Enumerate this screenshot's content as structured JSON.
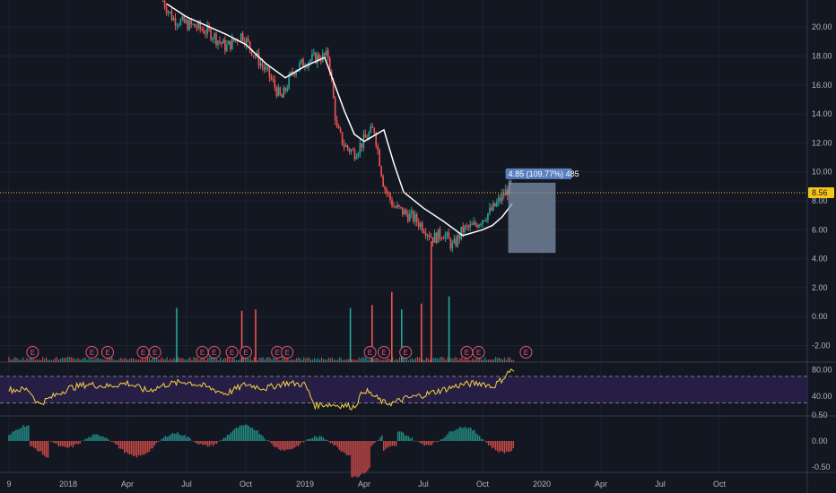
{
  "chart_data": {
    "type": "candlestick",
    "colors": {
      "background": "#131722",
      "grid": "#1e2230",
      "up": "#26a69a",
      "down": "#ef5350",
      "ma_line": "#ffffff",
      "current_price_line": "#f5c518",
      "rsi_line": "#f5d442",
      "rsi_band": "#2a1f4a",
      "measure_box": "#8597b0",
      "label_bg": "#5a7fc0"
    },
    "price_axis": {
      "ticks": [
        "20.00",
        "18.00",
        "16.00",
        "14.00",
        "12.00",
        "10.00",
        "8.00",
        "6.00",
        "4.00",
        "2.00",
        "0.00",
        "-2.00"
      ],
      "tick_values": [
        20,
        18,
        16,
        14,
        12,
        10,
        8,
        6,
        4,
        2,
        0,
        -2
      ],
      "ylim": [
        -3,
        22
      ]
    },
    "rsi_axis": {
      "ticks": [
        "80.00",
        "40.00"
      ],
      "tick_values": [
        80,
        40
      ],
      "ylim": [
        15,
        100
      ],
      "band": [
        30,
        70
      ]
    },
    "macd_axis": {
      "ticks": [
        "0.50",
        "0.00",
        "-0.50"
      ],
      "tick_values": [
        0.5,
        0,
        -0.5
      ],
      "ylim": [
        -0.75,
        0.75
      ]
    },
    "time_axis": {
      "labels": [
        "9",
        "2018",
        "Apr",
        "Jul",
        "Oct",
        "2019",
        "Apr",
        "Jul",
        "Oct",
        "2020",
        "Apr",
        "Jul",
        "Oct"
      ],
      "months_from_start": [
        0,
        3,
        6,
        9,
        12,
        15,
        18,
        21,
        24,
        27,
        30,
        33,
        36
      ]
    },
    "current_price": "8.56",
    "current_price_value": 8.56,
    "measure_label": "4.85 (109.77%) 485",
    "measure_range": {
      "low": 4.4,
      "high": 9.25,
      "start_month": 25.3,
      "end_month": 27.7
    },
    "price_series": {
      "months": [
        7.8,
        8.3,
        8.8,
        9.5,
        10.2,
        11.0,
        11.8,
        12.5,
        13.2,
        13.8,
        14.4,
        15.0,
        15.6,
        16.2,
        16.6,
        17.0,
        17.5,
        18.0,
        18.5,
        19.0,
        19.5,
        20.0,
        20.5,
        21.0,
        21.5,
        22.0,
        22.5,
        23.0,
        23.5,
        24.0,
        24.5,
        25.0,
        25.5
      ],
      "close": [
        21.8,
        20.6,
        20.3,
        20.0,
        19.6,
        18.6,
        19.5,
        18.0,
        16.6,
        15.0,
        17.0,
        17.6,
        17.9,
        18.0,
        13.0,
        11.8,
        11.3,
        12.2,
        13.0,
        9.0,
        7.6,
        7.2,
        6.8,
        6.2,
        5.4,
        5.8,
        4.8,
        6.0,
        6.2,
        6.8,
        7.4,
        8.3,
        9.2
      ]
    },
    "ma_series": {
      "months": [
        8.0,
        9.0,
        10.0,
        11.0,
        12.0,
        13.0,
        14.0,
        15.0,
        16.0,
        17.0,
        17.5,
        18.0,
        18.5,
        19.0,
        19.5,
        20.0,
        21.0,
        22.0,
        23.0,
        24.0,
        24.5,
        25.0,
        25.5
      ],
      "values": [
        21.6,
        20.7,
        20.1,
        19.5,
        18.8,
        17.5,
        16.5,
        17.3,
        17.9,
        14.2,
        12.6,
        12.1,
        12.5,
        12.9,
        10.6,
        8.6,
        7.5,
        6.6,
        5.6,
        6.0,
        6.3,
        6.9,
        7.8
      ]
    },
    "volume_spikes": {
      "months": [
        8.5,
        11.8,
        12.5,
        17.3,
        18.4,
        19.4,
        19.9,
        20.9,
        21.4,
        22.3
      ],
      "values": [
        0.6,
        0.4,
        0.5,
        0.6,
        0.8,
        1.7,
        0.5,
        0.9,
        5.2,
        1.4
      ]
    },
    "earnings_markers_months": [
      1.2,
      4.2,
      5.0,
      6.8,
      7.4,
      9.8,
      10.4,
      11.3,
      12.0,
      13.6,
      14.1,
      18.3,
      19.0,
      20.1,
      23.2,
      23.8,
      26.2
    ],
    "rsi_series": {
      "months": [
        0,
        1,
        1.5,
        2,
        3,
        4,
        5,
        6,
        7,
        8,
        9,
        10,
        11,
        12,
        13,
        14,
        15,
        15.5,
        16,
        17,
        17.5,
        18,
        19,
        19.5,
        20,
        21,
        22,
        23,
        24,
        24.5,
        25,
        25.5,
        25.6
      ],
      "values": [
        50,
        50,
        28,
        36,
        52,
        58,
        55,
        60,
        48,
        58,
        62,
        54,
        44,
        58,
        52,
        60,
        58,
        26,
        28,
        26,
        24,
        50,
        30,
        30,
        36,
        42,
        50,
        58,
        60,
        54,
        66,
        82,
        75
      ]
    }
  }
}
